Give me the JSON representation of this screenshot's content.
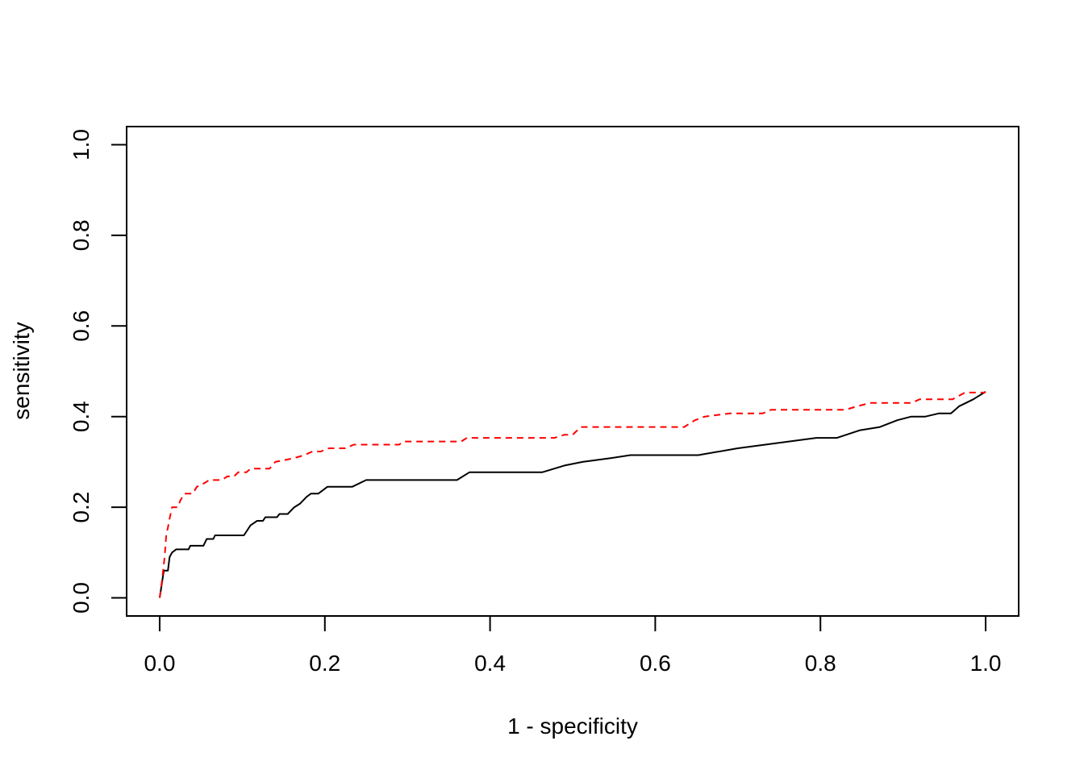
{
  "chart_data": {
    "type": "line",
    "title": "",
    "xlabel": "1 - specificity",
    "ylabel": "sensitivity",
    "xlim": [
      -0.04,
      1.04
    ],
    "ylim": [
      -0.04,
      1.04
    ],
    "xticks": [
      0.0,
      0.2,
      0.4,
      0.6,
      0.8,
      1.0
    ],
    "xtick_labels": [
      "0.0",
      "0.2",
      "0.4",
      "0.6",
      "0.8",
      "1.0"
    ],
    "yticks": [
      0.0,
      0.2,
      0.4,
      0.6,
      0.8,
      1.0
    ],
    "ytick_labels": [
      "0.0",
      "0.2",
      "0.4",
      "0.6",
      "0.8",
      "1.0"
    ],
    "grid": false,
    "series": [
      {
        "name": "solid",
        "color": "#000000",
        "dash": "solid",
        "points": [
          [
            0,
            0
          ],
          [
            0.005,
            0.06
          ],
          [
            0.01,
            0.06
          ],
          [
            0.012,
            0.09
          ],
          [
            0.015,
            0.1
          ],
          [
            0.02,
            0.107
          ],
          [
            0.035,
            0.107
          ],
          [
            0.037,
            0.115
          ],
          [
            0.053,
            0.115
          ],
          [
            0.057,
            0.13
          ],
          [
            0.065,
            0.13
          ],
          [
            0.067,
            0.138
          ],
          [
            0.102,
            0.138
          ],
          [
            0.11,
            0.16
          ],
          [
            0.118,
            0.17
          ],
          [
            0.125,
            0.17
          ],
          [
            0.128,
            0.178
          ],
          [
            0.142,
            0.178
          ],
          [
            0.145,
            0.185
          ],
          [
            0.155,
            0.185
          ],
          [
            0.163,
            0.2
          ],
          [
            0.17,
            0.208
          ],
          [
            0.178,
            0.223
          ],
          [
            0.183,
            0.23
          ],
          [
            0.192,
            0.23
          ],
          [
            0.203,
            0.245
          ],
          [
            0.233,
            0.245
          ],
          [
            0.25,
            0.26
          ],
          [
            0.36,
            0.26
          ],
          [
            0.375,
            0.277
          ],
          [
            0.463,
            0.277
          ],
          [
            0.49,
            0.292
          ],
          [
            0.512,
            0.3
          ],
          [
            0.545,
            0.308
          ],
          [
            0.57,
            0.315
          ],
          [
            0.652,
            0.315
          ],
          [
            0.7,
            0.33
          ],
          [
            0.795,
            0.353
          ],
          [
            0.82,
            0.353
          ],
          [
            0.848,
            0.37
          ],
          [
            0.872,
            0.377
          ],
          [
            0.893,
            0.392
          ],
          [
            0.91,
            0.4
          ],
          [
            0.927,
            0.4
          ],
          [
            0.943,
            0.407
          ],
          [
            0.958,
            0.407
          ],
          [
            0.968,
            0.423
          ],
          [
            0.985,
            0.438
          ],
          [
            1.0,
            0.455
          ]
        ]
      },
      {
        "name": "dashed",
        "color": "#ff0000",
        "dash": "dashed",
        "points": [
          [
            0,
            0
          ],
          [
            0.003,
            0.04
          ],
          [
            0.006,
            0.09
          ],
          [
            0.008,
            0.14
          ],
          [
            0.01,
            0.155
          ],
          [
            0.012,
            0.175
          ],
          [
            0.015,
            0.2
          ],
          [
            0.022,
            0.2
          ],
          [
            0.025,
            0.215
          ],
          [
            0.03,
            0.23
          ],
          [
            0.04,
            0.23
          ],
          [
            0.045,
            0.245
          ],
          [
            0.053,
            0.252
          ],
          [
            0.06,
            0.26
          ],
          [
            0.075,
            0.26
          ],
          [
            0.082,
            0.268
          ],
          [
            0.09,
            0.268
          ],
          [
            0.095,
            0.277
          ],
          [
            0.105,
            0.277
          ],
          [
            0.11,
            0.285
          ],
          [
            0.133,
            0.285
          ],
          [
            0.14,
            0.3
          ],
          [
            0.162,
            0.308
          ],
          [
            0.175,
            0.315
          ],
          [
            0.185,
            0.323
          ],
          [
            0.195,
            0.323
          ],
          [
            0.205,
            0.33
          ],
          [
            0.225,
            0.33
          ],
          [
            0.235,
            0.338
          ],
          [
            0.29,
            0.338
          ],
          [
            0.295,
            0.345
          ],
          [
            0.365,
            0.345
          ],
          [
            0.372,
            0.353
          ],
          [
            0.478,
            0.353
          ],
          [
            0.49,
            0.36
          ],
          [
            0.5,
            0.36
          ],
          [
            0.51,
            0.377
          ],
          [
            0.635,
            0.377
          ],
          [
            0.648,
            0.392
          ],
          [
            0.66,
            0.4
          ],
          [
            0.69,
            0.407
          ],
          [
            0.73,
            0.407
          ],
          [
            0.74,
            0.415
          ],
          [
            0.83,
            0.415
          ],
          [
            0.845,
            0.423
          ],
          [
            0.86,
            0.43
          ],
          [
            0.91,
            0.43
          ],
          [
            0.92,
            0.438
          ],
          [
            0.96,
            0.438
          ],
          [
            0.975,
            0.453
          ],
          [
            1.0,
            0.453
          ]
        ]
      }
    ]
  }
}
